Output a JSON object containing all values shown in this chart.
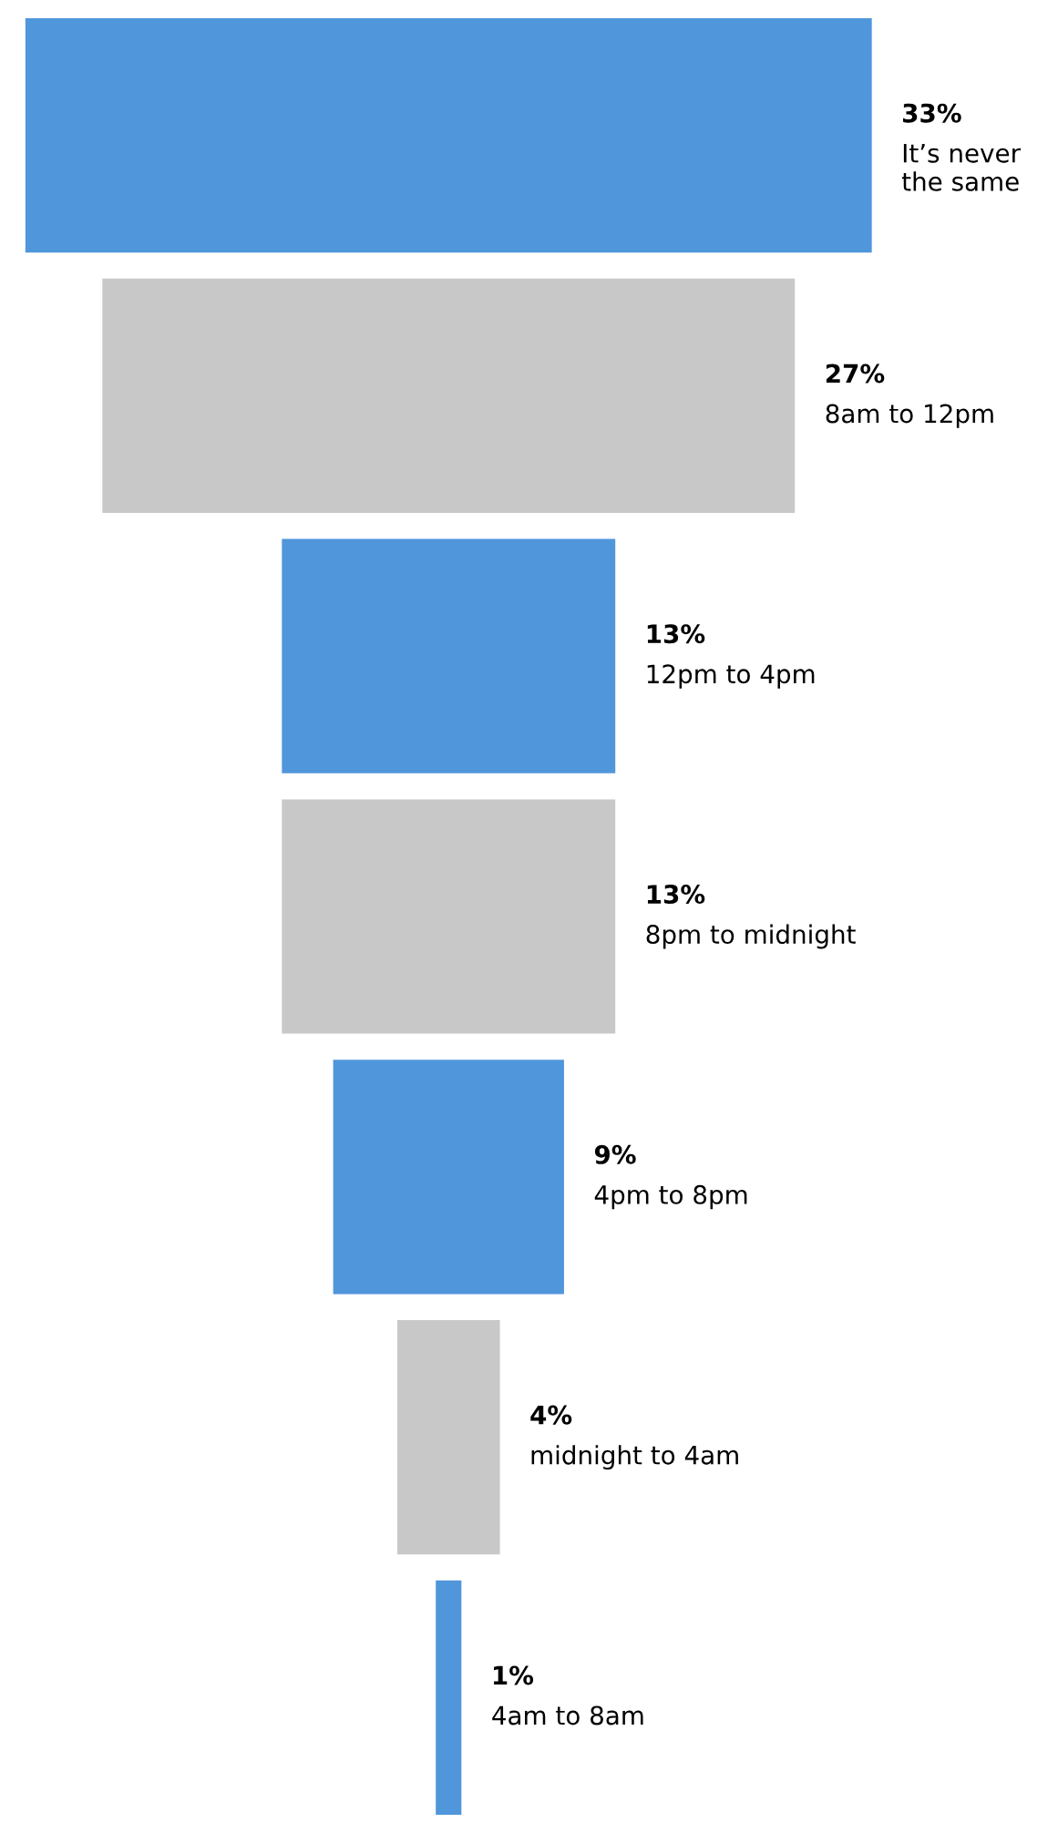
{
  "chart_data": {
    "type": "other",
    "categories": [
      "It’s never the same",
      "8am to 12pm",
      "12pm to 4pm",
      "8pm to midnight",
      "4pm to 8pm",
      "midnight to 4am",
      "4am to 8am"
    ],
    "values": [
      33,
      27,
      13,
      13,
      9,
      4,
      1
    ],
    "value_labels": [
      "33%",
      "27%",
      "13%",
      "13%",
      "9%",
      "4%",
      "1%"
    ],
    "colors": [
      "#5096db",
      "#c8c8c8",
      "#5096db",
      "#c8c8c8",
      "#5096db",
      "#c8c8c8",
      "#5096db"
    ]
  }
}
